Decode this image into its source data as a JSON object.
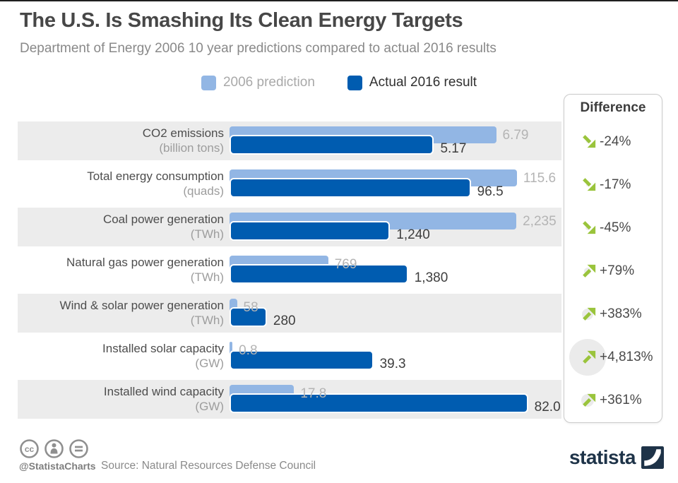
{
  "header": {
    "title": "The U.S. Is Smashing Its Clean Energy Targets",
    "subtitle": "Department of Energy 2006 10 year predictions compared to actual 2016 results"
  },
  "legend": [
    "2006 prediction",
    "Actual 2016 result"
  ],
  "panel": {
    "title": "Difference"
  },
  "colors": {
    "prediction_blue": "#92b6e4",
    "actual_blue": "#005cb0",
    "difference_green": "#9ac43c",
    "shaded_row_gray": "#ececec",
    "logo_navy": "#1e3348"
  },
  "chart_data": {
    "type": "bar",
    "orientation": "horizontal",
    "title": "The U.S. Is Smashing Its Clean Energy Targets",
    "subtitle": "Department of Energy 2006 10 year predictions compared to actual 2016 results",
    "legend": [
      "2006 prediction",
      "Actual 2016 result"
    ],
    "series_note": "each row shows DOE 2006 prediction vs actual 2016 result",
    "rows": [
      {
        "label": "CO2 emissions",
        "unit": "(billion tons)",
        "prediction": 6.79,
        "actual": 5.17,
        "prediction_label": "6.79",
        "actual_label": "5.17",
        "difference": "-24%",
        "direction": "down"
      },
      {
        "label": "Total energy consumption",
        "unit": "(quads)",
        "prediction": 115.6,
        "actual": 96.5,
        "prediction_label": "115.6",
        "actual_label": "96.5",
        "difference": "-17%",
        "direction": "down"
      },
      {
        "label": "Coal power generation",
        "unit": "(TWh)",
        "prediction": 2235,
        "actual": 1240,
        "prediction_label": "2,235",
        "actual_label": "1,240",
        "difference": "-45%",
        "direction": "down"
      },
      {
        "label": "Natural gas power generation",
        "unit": "(TWh)",
        "prediction": 769,
        "actual": 1380,
        "prediction_label": "769",
        "actual_label": "1,380",
        "difference": "+79%",
        "direction": "up"
      },
      {
        "label": "Wind & solar power generation",
        "unit": "(TWh)",
        "prediction": 58,
        "actual": 280,
        "prediction_label": "58",
        "actual_label": "280",
        "difference": "+383%",
        "direction": "up"
      },
      {
        "label": "Installed solar capacity",
        "unit": "(GW)",
        "prediction": 0.8,
        "actual": 39.3,
        "prediction_label": "0.8",
        "actual_label": "39.3",
        "difference": "+4,813%",
        "direction": "up"
      },
      {
        "label": "Installed wind capacity",
        "unit": "(GW)",
        "prediction": 17.8,
        "actual": 82.0,
        "prediction_label": "17.8",
        "actual_label": "82.0",
        "difference": "+361%",
        "direction": "up"
      }
    ]
  },
  "footer": {
    "license_icons": [
      "creative-commons-icon",
      "attribution-icon",
      "no-derivatives-icon"
    ],
    "handle": "@StatistaCharts",
    "source": "Source: Natural Resources Defense Council",
    "logo_text": "statista"
  }
}
